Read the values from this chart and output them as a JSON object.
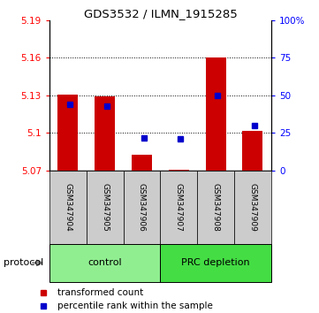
{
  "title": "GDS3532 / ILMN_1915285",
  "samples": [
    "GSM347904",
    "GSM347905",
    "GSM347906",
    "GSM347907",
    "GSM347908",
    "GSM347909"
  ],
  "red_values": [
    5.131,
    5.129,
    5.083,
    5.071,
    5.16,
    5.102
  ],
  "blue_values": [
    44,
    43,
    22,
    21,
    50,
    30
  ],
  "ymin": 5.07,
  "ymax": 5.19,
  "yticks_left": [
    5.07,
    5.1,
    5.13,
    5.16,
    5.19
  ],
  "yticks_right": [
    0,
    25,
    50,
    75,
    100
  ],
  "yright_min": 0,
  "yright_max": 100,
  "groups": [
    {
      "label": "control",
      "samples": [
        0,
        1,
        2
      ],
      "color": "#90EE90"
    },
    {
      "label": "PRC depletion",
      "samples": [
        3,
        4,
        5
      ],
      "color": "#44DD44"
    }
  ],
  "bar_color": "#CC0000",
  "dot_color": "#0000CC",
  "bar_width": 0.55,
  "background_color": "#FFFFFF",
  "sample_bg_color": "#CCCCCC",
  "protocol_label": "protocol",
  "legend_red": "transformed count",
  "legend_blue": "percentile rank within the sample"
}
